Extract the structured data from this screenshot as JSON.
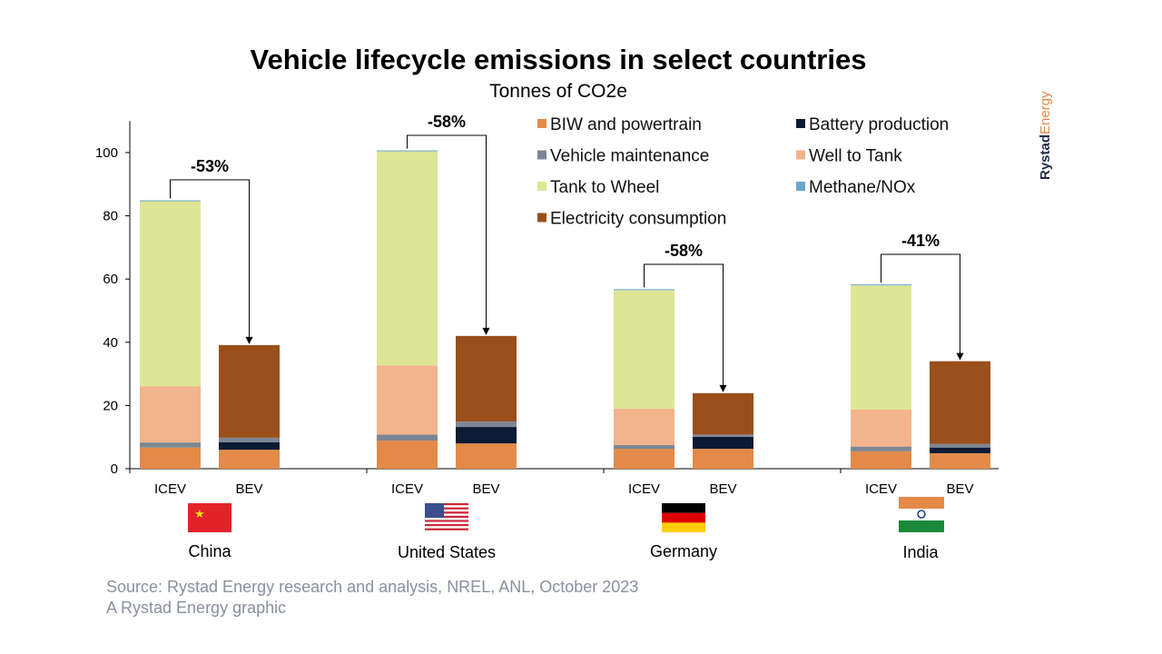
{
  "chart_data": {
    "type": "bar",
    "stacked": true,
    "title": "Vehicle lifecycle emissions in select countries",
    "subtitle": "Tonnes of CO2e",
    "ylim": [
      0,
      110
    ],
    "yticks": [
      0,
      20,
      40,
      60,
      80,
      100
    ],
    "grid": false,
    "legend_position": "top-right",
    "groups": [
      "China",
      "United States",
      "Germany",
      "India"
    ],
    "categories": [
      "ICEV",
      "BEV"
    ],
    "series": [
      {
        "name": "BIW and powertrain",
        "color": "#e38a48",
        "values": [
          [
            6.7,
            6.0
          ],
          [
            8.9,
            8.0
          ],
          [
            6.3,
            6.3
          ],
          [
            5.5,
            4.9
          ]
        ]
      },
      {
        "name": "Battery production",
        "color": "#0c1a33",
        "values": [
          [
            0,
            2.4
          ],
          [
            0,
            5.2
          ],
          [
            0,
            3.8
          ],
          [
            0,
            1.8
          ]
        ]
      },
      {
        "name": "Vehicle maintenance",
        "color": "#7d8694",
        "values": [
          [
            1.6,
            1.4
          ],
          [
            1.9,
            1.7
          ],
          [
            1.2,
            0.7
          ],
          [
            1.5,
            1.1
          ]
        ]
      },
      {
        "name": "Well to Tank",
        "color": "#f2b48c",
        "values": [
          [
            17.8,
            0
          ],
          [
            21.9,
            0
          ],
          [
            11.5,
            0
          ],
          [
            11.7,
            0
          ]
        ]
      },
      {
        "name": "Tank to Wheel",
        "color": "#dde695",
        "values": [
          [
            58.5,
            0
          ],
          [
            67.7,
            0
          ],
          [
            37.5,
            0
          ],
          [
            39.3,
            0
          ]
        ]
      },
      {
        "name": "Methane/NOx",
        "color": "#6aa6c8",
        "values": [
          [
            0.3,
            0
          ],
          [
            0.3,
            0
          ],
          [
            0.3,
            0
          ],
          [
            0.3,
            0
          ]
        ]
      },
      {
        "name": "Electricity consumption",
        "color": "#9a4f1a",
        "values": [
          [
            0,
            29.3
          ],
          [
            0,
            27.1
          ],
          [
            0,
            13.1
          ],
          [
            0,
            26.2
          ]
        ]
      }
    ],
    "annotations": [
      "-53%",
      "-58%",
      "-58%",
      "-41%"
    ]
  },
  "flags": [
    "china-flag",
    "usa-flag",
    "germany-flag",
    "india-flag"
  ],
  "footer": {
    "source": "Source: Rystad Energy research and analysis, NREL, ANL, October 2023",
    "credit": "A Rystad Energy graphic"
  },
  "logo": {
    "part1": "Rystad",
    "part2": "Energy",
    "color1": "#1f2a44",
    "color2": "#e38a48"
  }
}
